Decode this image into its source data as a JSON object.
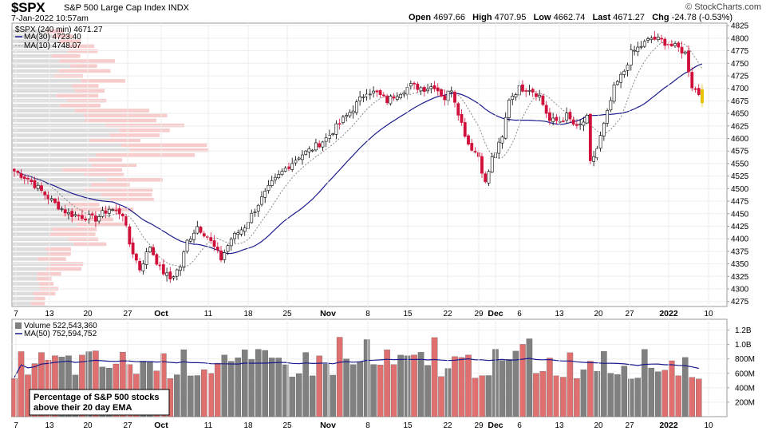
{
  "header": {
    "symbol": "$SPX",
    "name": "S&P 500 Large Cap Index",
    "exchange": "INDX",
    "date": "7-Jan-2022 10:57am",
    "credit": "© StockCharts.com",
    "open_label": "Open",
    "open": "4697.66",
    "high_label": "High",
    "high": "4707.95",
    "low_label": "Low",
    "low": "4662.74",
    "last_label": "Last",
    "last": "4671.27",
    "chg_label": "Chg",
    "chg": "-24.78 (-0.53%)"
  },
  "chart_data": [
    {
      "type": "candlestick",
      "title": "$SPX (240 min) 4671.27",
      "ylim": [
        4265,
        4830
      ],
      "y_ticks": [
        4275,
        4300,
        4325,
        4350,
        4375,
        4400,
        4425,
        4450,
        4475,
        4500,
        4525,
        4550,
        4575,
        4600,
        4625,
        4650,
        4675,
        4700,
        4725,
        4750,
        4775,
        4800,
        4825
      ],
      "x_labels": [
        "7",
        "13",
        "20",
        "27",
        "Oct",
        "11",
        "18",
        "25",
        "Nov",
        "8",
        "15",
        "22",
        "29",
        "Dec",
        "6",
        "13",
        "20",
        "27",
        "2022",
        "10"
      ],
      "x_labels_bold": [
        "Oct",
        "Nov",
        "Dec",
        "2022"
      ],
      "legend": [
        {
          "label": "MA(30) 4723.40",
          "color": "#1a1a8c"
        },
        {
          "label": "MA(10) 4748.07",
          "color": "#777777"
        }
      ],
      "colors": {
        "up": "#000000",
        "down": "#d0103a",
        "last": "#e8c000",
        "ma30": "#1a1a8c",
        "ma10": "#888888"
      },
      "anchors": [
        [
          0,
          4535
        ],
        [
          4,
          4520
        ],
        [
          8,
          4495
        ],
        [
          12,
          4470
        ],
        [
          16,
          4450
        ],
        [
          20,
          4445
        ],
        [
          24,
          4440
        ],
        [
          28,
          4460
        ],
        [
          32,
          4450
        ],
        [
          34,
          4390
        ],
        [
          37,
          4340
        ],
        [
          40,
          4385
        ],
        [
          43,
          4340
        ],
        [
          46,
          4320
        ],
        [
          49,
          4345
        ],
        [
          51,
          4395
        ],
        [
          54,
          4425
        ],
        [
          57,
          4405
        ],
        [
          61,
          4360
        ],
        [
          64,
          4400
        ],
        [
          68,
          4425
        ],
        [
          72,
          4470
        ],
        [
          76,
          4510
        ],
        [
          80,
          4540
        ],
        [
          84,
          4565
        ],
        [
          88,
          4580
        ],
        [
          92,
          4600
        ],
        [
          96,
          4630
        ],
        [
          100,
          4660
        ],
        [
          104,
          4695
        ],
        [
          107,
          4690
        ],
        [
          110,
          4675
        ],
        [
          113,
          4690
        ],
        [
          117,
          4705
        ],
        [
          121,
          4700
        ],
        [
          124,
          4705
        ],
        [
          127,
          4680
        ],
        [
          129,
          4700
        ],
        [
          132,
          4630
        ],
        [
          134,
          4590
        ],
        [
          137,
          4565
        ],
        [
          139,
          4510
        ],
        [
          141,
          4560
        ],
        [
          144,
          4600
        ],
        [
          146,
          4680
        ],
        [
          149,
          4700
        ],
        [
          152,
          4700
        ],
        [
          155,
          4685
        ],
        [
          158,
          4635
        ],
        [
          161,
          4635
        ],
        [
          163,
          4645
        ],
        [
          166,
          4620
        ],
        [
          169,
          4640
        ],
        [
          170,
          4550
        ],
        [
          172,
          4580
        ],
        [
          175,
          4650
        ],
        [
          177,
          4700
        ],
        [
          180,
          4735
        ],
        [
          182,
          4770
        ],
        [
          185,
          4785
        ],
        [
          188,
          4800
        ],
        [
          191,
          4795
        ],
        [
          194,
          4785
        ],
        [
          196,
          4780
        ],
        [
          198,
          4770
        ],
        [
          200,
          4705
        ],
        [
          202,
          4690
        ],
        [
          203,
          4671
        ]
      ]
    },
    {
      "type": "bar",
      "title": "Volume 522,543,360",
      "ma_label": "MA(50) 752,594,752",
      "ylim": [
        0,
        1350000000
      ],
      "y_ticks": [
        "200M",
        "400M",
        "600M",
        "800M",
        "1.0B",
        "1.2B"
      ],
      "y_tick_values": [
        200000000,
        400000000,
        600000000,
        800000000,
        1000000000,
        1200000000
      ],
      "x_labels": [
        "7",
        "13",
        "20",
        "27",
        "Oct",
        "11",
        "18",
        "25",
        "Nov",
        "8",
        "15",
        "22",
        "29",
        "Dec",
        "6",
        "13",
        "20",
        "27",
        "2022",
        "10"
      ],
      "x_labels_bold": [
        "Oct",
        "Nov",
        "Dec",
        "2022"
      ],
      "colors": {
        "up": "#808080",
        "down": "#e07070",
        "ma": "#1a1a8c"
      },
      "volume_profile_colors": {
        "up": "#dcdcdc",
        "down": "#f6cccc"
      },
      "ma_level": 752594752
    }
  ],
  "annotation": {
    "line1": "Percentage of S&P 500 stocks",
    "line2": "above their 20 day EMA"
  }
}
